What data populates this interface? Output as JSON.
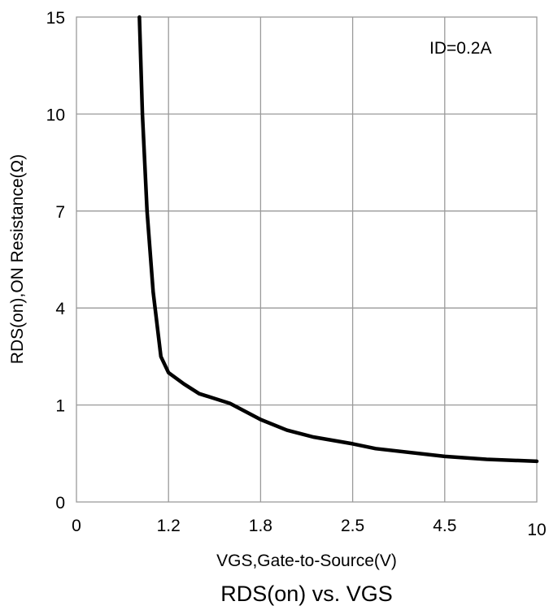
{
  "chart_data": {
    "type": "line",
    "title": "RDS(on) vs. VGS",
    "xlabel": "VGS,Gate-to-Source(V)",
    "ylabel": "RDS(on),ON Resistance(Ω)",
    "annotation": "ID=0.2A",
    "grid": true,
    "x_ticks": [
      "0",
      "1.2",
      "1.8",
      "2.5",
      "4.5",
      "10"
    ],
    "y_ticks": [
      "0",
      "1",
      "4",
      "7",
      "10",
      "15"
    ],
    "series": [
      {
        "points": [
          {
            "x": 0.82,
            "y": 15
          },
          {
            "x": 0.86,
            "y": 10
          },
          {
            "x": 0.92,
            "y": 7
          },
          {
            "x": 1.0,
            "y": 4.5
          },
          {
            "x": 1.1,
            "y": 2.5
          },
          {
            "x": 1.2,
            "y": 2.0
          },
          {
            "x": 1.3,
            "y": 1.65
          },
          {
            "x": 1.4,
            "y": 1.35
          },
          {
            "x": 1.5,
            "y": 1.2
          },
          {
            "x": 1.6,
            "y": 1.05
          },
          {
            "x": 1.8,
            "y": 0.85
          },
          {
            "x": 2.0,
            "y": 0.74
          },
          {
            "x": 2.2,
            "y": 0.67
          },
          {
            "x": 2.5,
            "y": 0.6
          },
          {
            "x": 3.0,
            "y": 0.55
          },
          {
            "x": 4.5,
            "y": 0.47
          },
          {
            "x": 7.0,
            "y": 0.44
          },
          {
            "x": 10,
            "y": 0.42
          }
        ]
      }
    ]
  }
}
